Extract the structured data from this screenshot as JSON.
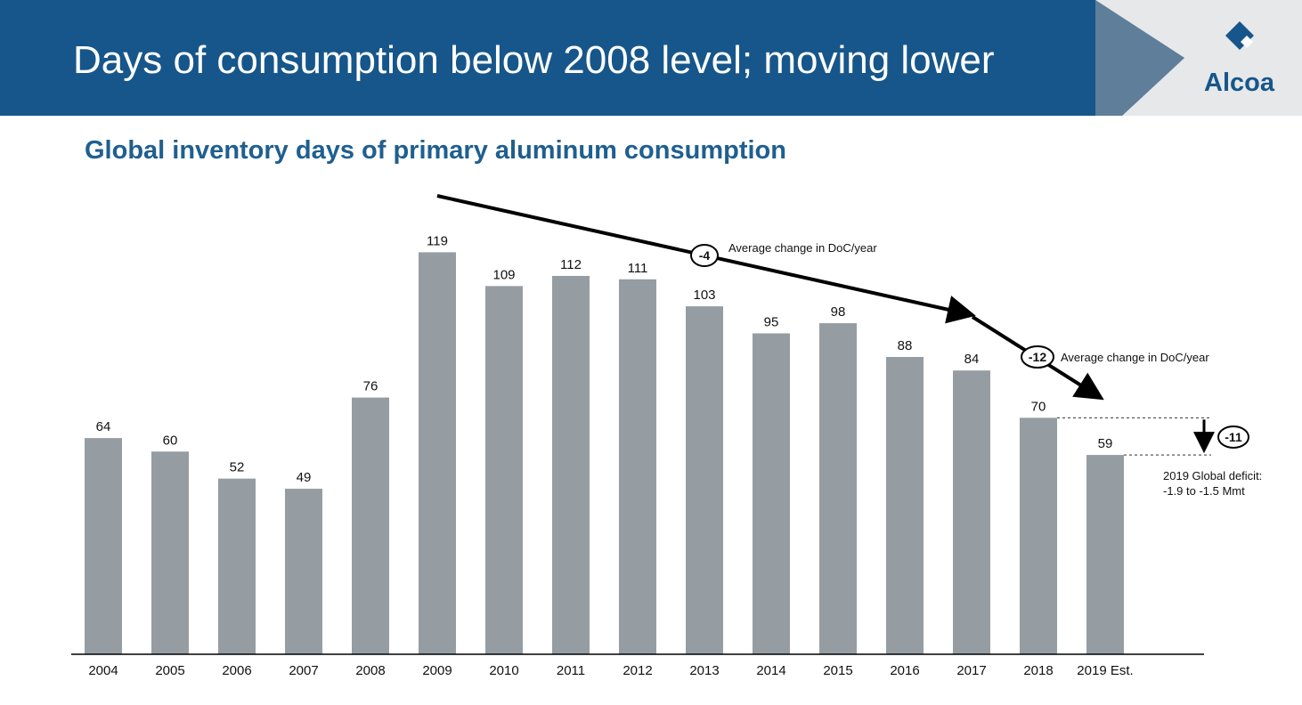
{
  "header": {
    "title": "Days of consumption below 2008 level; moving lower",
    "logo_text": "Alcoa",
    "colors": {
      "banner": "#17568a",
      "logo_panel": "#e6e8ea",
      "logo_mark": "#17568a"
    }
  },
  "chart_data": {
    "type": "bar",
    "title": "Global inventory days of primary aluminum consumption",
    "xlabel": "",
    "ylabel": "",
    "ylim": [
      0,
      120
    ],
    "grid": false,
    "legend": "none",
    "bar_color": "#959da3",
    "categories": [
      "2004",
      "2005",
      "2006",
      "2007",
      "2008",
      "2009",
      "2010",
      "2011",
      "2012",
      "2013",
      "2014",
      "2015",
      "2016",
      "2017",
      "2018",
      "2019 Est."
    ],
    "values": [
      64,
      60,
      52,
      49,
      76,
      119,
      109,
      112,
      111,
      103,
      95,
      98,
      88,
      84,
      70,
      59
    ],
    "annotations": [
      {
        "badge": "-4",
        "text": "Average change in DoC/year",
        "from": "2009",
        "to": "2017"
      },
      {
        "badge": "-12",
        "text": "Average change in DoC/year",
        "from": "2017",
        "to": "2019 Est."
      },
      {
        "badge": "-11",
        "from": "2018",
        "to": "2019 Est."
      }
    ],
    "deficit_note": [
      "2019 Global deficit:",
      "-1.9 to -1.5 Mmt"
    ]
  }
}
